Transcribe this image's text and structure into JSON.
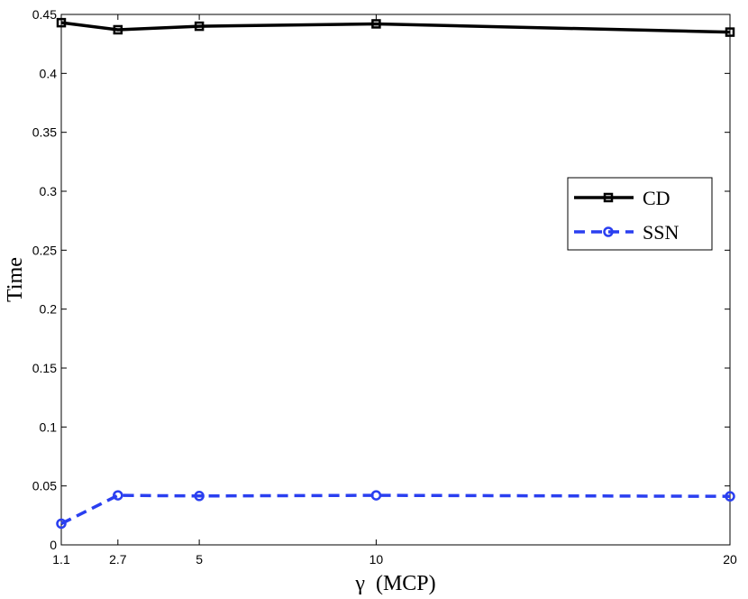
{
  "chart_data": {
    "type": "line",
    "xlabel": "γ  (MCP)",
    "ylabel": "Time",
    "x": [
      1.1,
      2.7,
      5,
      10,
      20
    ],
    "xlim": [
      1.1,
      20
    ],
    "ylim": [
      0,
      0.45
    ],
    "xticks": [
      1.1,
      2.7,
      5,
      10,
      20
    ],
    "xtick_labels": [
      "1.1",
      "2.7",
      "5",
      "10",
      "20"
    ],
    "yticks": [
      0,
      0.05,
      0.1,
      0.15,
      0.2,
      0.25,
      0.3,
      0.35,
      0.4,
      0.45
    ],
    "ytick_labels": [
      "0",
      "0.05",
      "0.1",
      "0.15",
      "0.2",
      "0.25",
      "0.3",
      "0.35",
      "0.4",
      "0.45"
    ],
    "grid": false,
    "legend_position": "center-right",
    "series": [
      {
        "name": "CD",
        "values": [
          0.443,
          0.437,
          0.44,
          0.442,
          0.435
        ],
        "color": "#000000",
        "line_style": "solid",
        "marker": "square"
      },
      {
        "name": "SSN",
        "values": [
          0.018,
          0.042,
          0.0415,
          0.042,
          0.0412
        ],
        "color": "#2a3ff0",
        "line_style": "dashed",
        "marker": "circle"
      }
    ]
  }
}
